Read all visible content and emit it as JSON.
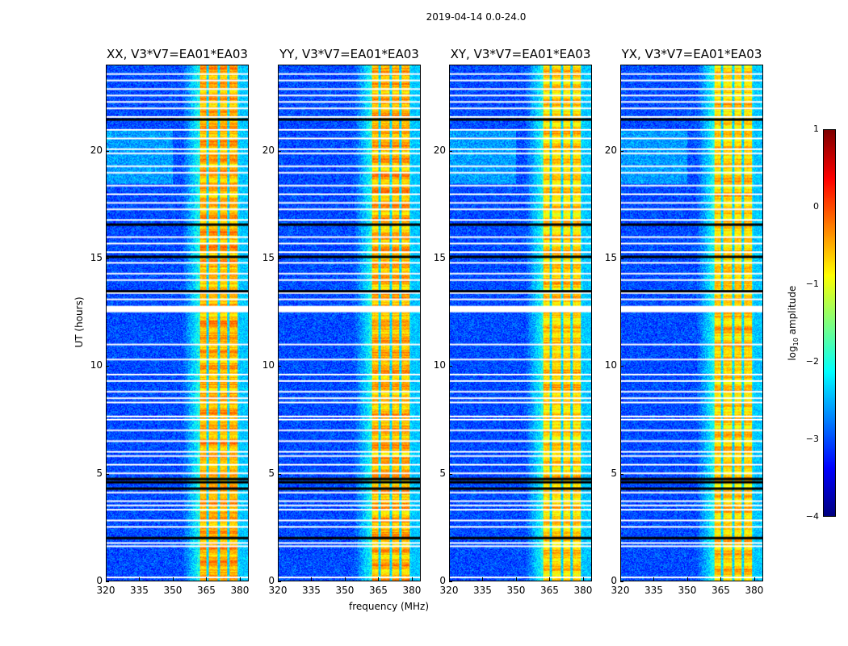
{
  "suptitle": "2019-04-14 0.0-24.0",
  "chart_data": {
    "type": "heatmap",
    "title": "2019-04-14 0.0-24.0",
    "xlabel": "frequency (MHz)",
    "ylabel": "UT (hours)",
    "xlim": [
      320,
      384
    ],
    "ylim": [
      0,
      24
    ],
    "xticks": [
      "320",
      "335",
      "350",
      "365",
      "380"
    ],
    "xtick_values": [
      320,
      335,
      350,
      365,
      380
    ],
    "yticks": [
      "0",
      "5",
      "10",
      "15",
      "20"
    ],
    "ytick_values": [
      0,
      5,
      10,
      15,
      20
    ],
    "panels": [
      {
        "title": "XX, V3*V7=EA01*EA03",
        "polarization": "XX"
      },
      {
        "title": "YY, V3*V7=EA01*EA03",
        "polarization": "YY"
      },
      {
        "title": "XY, V3*V7=EA01*EA03",
        "polarization": "XY"
      },
      {
        "title": "YX, V3*V7=EA01*EA03",
        "polarization": "YX"
      }
    ],
    "value_description": {
      "background_level_log10": -3,
      "rfi_band_mhz": [
        362,
        380
      ],
      "rfi_level_log10": -0.5,
      "channel_edges_mhz": [
        365.5,
        370.5,
        375,
        379.5
      ],
      "flagged_hours": [
        0.15,
        1.6,
        1.75,
        2.5,
        2.8,
        3.3,
        3.5,
        3.7,
        4.1,
        5.0,
        5.4,
        5.8,
        6.0,
        6.5,
        7.0,
        7.5,
        7.65,
        8.3,
        8.5,
        8.8,
        9.3,
        9.6,
        10.3,
        11.0,
        13.1,
        13.4,
        14.0,
        14.3,
        14.8,
        15.3,
        15.7,
        16.0,
        16.8,
        17.3,
        17.6,
        18.0,
        18.4,
        19.0,
        19.3,
        19.9,
        20.1,
        20.6,
        21.0,
        21.6,
        22.0,
        22.3,
        22.6,
        22.9,
        23.3,
        23.6
      ],
      "flagged_band_hours": [
        12.5,
        12.8
      ],
      "dead_hours": [
        2.0,
        4.3,
        4.6,
        4.75,
        13.5,
        15.1,
        16.6,
        21.5
      ]
    },
    "colorbar": {
      "label": "log10 amplitude",
      "label_main": "log",
      "label_sub": "10",
      "label_rest": " amplitude",
      "range": [
        -4,
        1
      ],
      "ticks": [
        "1",
        "0",
        "−1",
        "−2",
        "−3",
        "−4"
      ],
      "tick_values": [
        1,
        0,
        -1,
        -2,
        -3,
        -4
      ],
      "colormap": "jet"
    }
  }
}
